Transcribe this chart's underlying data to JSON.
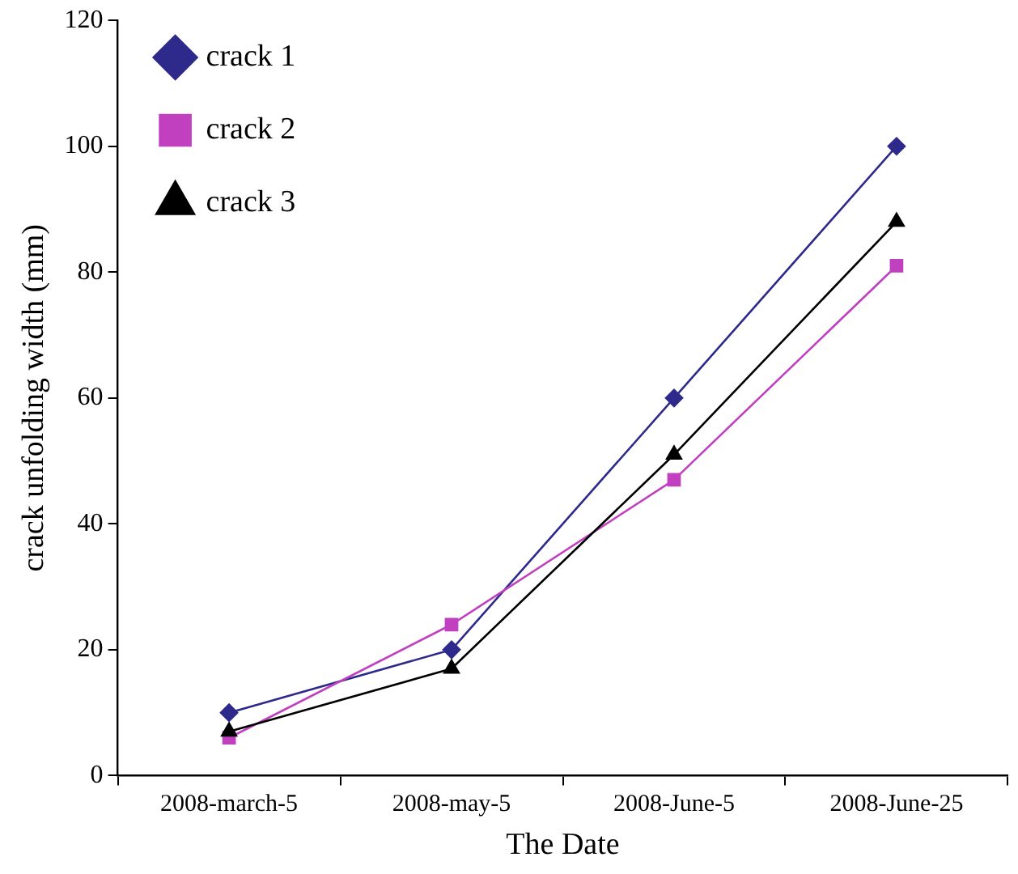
{
  "chart_data": {
    "type": "line",
    "xlabel": "The Date",
    "ylabel": "crack unfolding width (mm)",
    "categories": [
      "2008-march-5",
      "2008-may-5",
      "2008-June-5",
      "2008-June-25"
    ],
    "series": [
      {
        "name": "crack 1",
        "color": "#2e2a8c",
        "marker": "diamond",
        "values": [
          10,
          20,
          60,
          100
        ]
      },
      {
        "name": "crack 2",
        "color": "#c040c0",
        "marker": "square",
        "values": [
          6,
          24,
          47,
          81
        ]
      },
      {
        "name": "crack 3",
        "color": "#000000",
        "marker": "triangle",
        "values": [
          7,
          17,
          51,
          88
        ]
      }
    ],
    "ylim": [
      0,
      120
    ],
    "yticks": [
      0,
      20,
      40,
      60,
      80,
      100,
      120
    ],
    "grid": false,
    "legend": "top left",
    "line_style": "solid"
  }
}
